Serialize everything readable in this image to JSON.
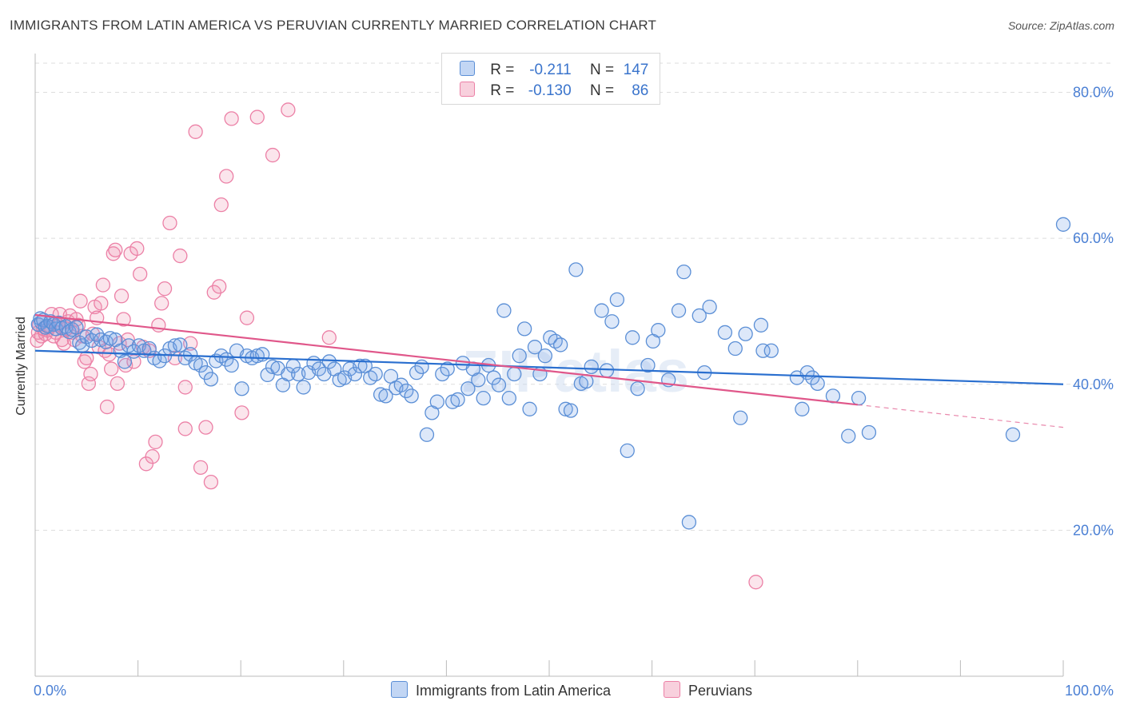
{
  "header": {
    "title": "IMMIGRANTS FROM LATIN AMERICA VS PERUVIAN CURRENTLY MARRIED CORRELATION CHART",
    "source": "Source: ZipAtlas.com"
  },
  "legend_top": {
    "rows": [
      {
        "r_label": "R =",
        "r_value": "-0.211",
        "n_label": "N =",
        "n_value": "147"
      },
      {
        "r_label": "R =",
        "r_value": "-0.130",
        "n_label": "N =",
        "n_value": "86"
      }
    ]
  },
  "legend_bottom": {
    "items": [
      "Immigrants from Latin America",
      "Peruvians"
    ]
  },
  "watermark": "ZIPatlas",
  "colors": {
    "blue": "#5b8fd6",
    "blue_fill": "rgba(120,165,230,0.25)",
    "blue_line": "#2a6fcf",
    "pink": "#ec80a6",
    "pink_fill": "rgba(240,150,180,0.25)",
    "pink_line": "#e0578a",
    "tick_text": "#4a7fd4",
    "grid": "#dddddd"
  },
  "chart_data": {
    "type": "scatter",
    "title": "IMMIGRANTS FROM LATIN AMERICA VS PERUVIAN CURRENTLY MARRIED CORRELATION CHART",
    "xlabel": "",
    "ylabel": "Currently Married",
    "xlim": [
      0,
      100
    ],
    "ylim": [
      0,
      84
    ],
    "x_ticks": [
      "0.0%",
      "100.0%"
    ],
    "y_ticks": [
      {
        "value": 20,
        "label": "20.0%"
      },
      {
        "value": 40,
        "label": "40.0%"
      },
      {
        "value": 60,
        "label": "60.0%"
      },
      {
        "value": 80,
        "label": "80.0%"
      }
    ],
    "grid": true,
    "legend_position": "top-center",
    "series": [
      {
        "name": "Immigrants from Latin America",
        "r": -0.211,
        "n": 147,
        "trend": {
          "x": [
            0,
            100
          ],
          "y": [
            44.6,
            40.0
          ]
        },
        "points": [
          [
            0.3,
            48.2
          ],
          [
            0.5,
            49.0
          ],
          [
            0.6,
            48.5
          ],
          [
            0.8,
            48.8
          ],
          [
            1.0,
            47.8
          ],
          [
            1.2,
            48.0
          ],
          [
            1.5,
            48.6
          ],
          [
            1.8,
            48.2
          ],
          [
            2.0,
            47.6
          ],
          [
            2.3,
            48.4
          ],
          [
            2.6,
            47.7
          ],
          [
            3.0,
            47.9
          ],
          [
            3.3,
            47.2
          ],
          [
            3.6,
            47.5
          ],
          [
            4.0,
            47.8
          ],
          [
            4.3,
            45.7
          ],
          [
            4.6,
            45.3
          ],
          [
            5.0,
            46.5
          ],
          [
            5.5,
            46.0
          ],
          [
            6.0,
            46.8
          ],
          [
            6.4,
            46.1
          ],
          [
            6.9,
            45.8
          ],
          [
            7.3,
            46.3
          ],
          [
            7.8,
            46.1
          ],
          [
            8.3,
            44.6
          ],
          [
            8.7,
            43.1
          ],
          [
            9.1,
            45.3
          ],
          [
            9.6,
            44.5
          ],
          [
            10.1,
            45.3
          ],
          [
            10.6,
            44.6
          ],
          [
            11.1,
            44.9
          ],
          [
            11.6,
            43.6
          ],
          [
            12.1,
            43.2
          ],
          [
            12.6,
            43.9
          ],
          [
            13.1,
            44.9
          ],
          [
            13.6,
            45.3
          ],
          [
            14.1,
            45.4
          ],
          [
            14.6,
            43.6
          ],
          [
            15.1,
            44.1
          ],
          [
            15.6,
            42.9
          ],
          [
            16.1,
            42.6
          ],
          [
            16.6,
            41.6
          ],
          [
            17.1,
            40.7
          ],
          [
            17.6,
            43.2
          ],
          [
            18.1,
            43.9
          ],
          [
            18.6,
            43.4
          ],
          [
            19.1,
            42.6
          ],
          [
            19.6,
            44.6
          ],
          [
            20.1,
            39.4
          ],
          [
            20.6,
            43.9
          ],
          [
            21.1,
            43.6
          ],
          [
            21.6,
            43.9
          ],
          [
            22.1,
            44.1
          ],
          [
            22.6,
            41.3
          ],
          [
            23.1,
            42.4
          ],
          [
            23.6,
            42.2
          ],
          [
            24.1,
            39.9
          ],
          [
            24.6,
            41.4
          ],
          [
            25.1,
            42.5
          ],
          [
            25.6,
            41.4
          ],
          [
            26.1,
            39.6
          ],
          [
            26.6,
            41.6
          ],
          [
            27.1,
            42.9
          ],
          [
            27.6,
            42.1
          ],
          [
            28.1,
            41.4
          ],
          [
            28.6,
            43.1
          ],
          [
            29.1,
            42.1
          ],
          [
            29.6,
            40.6
          ],
          [
            30.1,
            40.9
          ],
          [
            30.6,
            42.1
          ],
          [
            31.1,
            41.4
          ],
          [
            31.6,
            42.5
          ],
          [
            32.1,
            42.5
          ],
          [
            32.6,
            40.9
          ],
          [
            33.1,
            41.4
          ],
          [
            33.6,
            38.6
          ],
          [
            34.1,
            38.4
          ],
          [
            34.6,
            41.1
          ],
          [
            35.1,
            39.5
          ],
          [
            35.6,
            39.9
          ],
          [
            36.1,
            39.1
          ],
          [
            36.6,
            38.4
          ],
          [
            37.1,
            41.6
          ],
          [
            37.6,
            42.4
          ],
          [
            38.1,
            33.1
          ],
          [
            38.6,
            36.1
          ],
          [
            39.1,
            37.6
          ],
          [
            39.6,
            41.4
          ],
          [
            40.1,
            42.1
          ],
          [
            40.6,
            37.6
          ],
          [
            41.1,
            37.9
          ],
          [
            41.6,
            42.9
          ],
          [
            42.1,
            39.4
          ],
          [
            42.6,
            42.1
          ],
          [
            43.1,
            40.6
          ],
          [
            43.6,
            38.1
          ],
          [
            44.1,
            42.6
          ],
          [
            44.6,
            40.9
          ],
          [
            45.1,
            39.9
          ],
          [
            45.6,
            50.1
          ],
          [
            46.1,
            38.1
          ],
          [
            46.6,
            41.4
          ],
          [
            47.1,
            43.9
          ],
          [
            47.6,
            47.6
          ],
          [
            48.1,
            36.6
          ],
          [
            48.6,
            45.1
          ],
          [
            49.1,
            41.4
          ],
          [
            49.6,
            43.9
          ],
          [
            50.1,
            46.4
          ],
          [
            50.6,
            45.9
          ],
          [
            51.1,
            45.4
          ],
          [
            51.6,
            36.6
          ],
          [
            52.1,
            36.4
          ],
          [
            52.6,
            55.7
          ],
          [
            53.1,
            40.1
          ],
          [
            53.6,
            40.4
          ],
          [
            54.1,
            42.4
          ],
          [
            55.1,
            50.1
          ],
          [
            55.6,
            41.9
          ],
          [
            56.1,
            48.6
          ],
          [
            56.6,
            51.6
          ],
          [
            57.6,
            30.9
          ],
          [
            58.1,
            46.4
          ],
          [
            58.6,
            39.4
          ],
          [
            59.6,
            42.6
          ],
          [
            60.1,
            45.9
          ],
          [
            60.6,
            47.4
          ],
          [
            61.6,
            40.6
          ],
          [
            62.6,
            50.1
          ],
          [
            63.1,
            55.4
          ],
          [
            63.6,
            21.1
          ],
          [
            64.6,
            49.4
          ],
          [
            65.1,
            41.6
          ],
          [
            65.6,
            50.6
          ],
          [
            67.1,
            47.1
          ],
          [
            68.1,
            44.9
          ],
          [
            68.6,
            35.4
          ],
          [
            69.1,
            46.9
          ],
          [
            70.6,
            48.1
          ],
          [
            70.8,
            44.6
          ],
          [
            71.6,
            44.6
          ],
          [
            74.1,
            40.9
          ],
          [
            74.6,
            36.6
          ],
          [
            75.1,
            41.6
          ],
          [
            75.6,
            40.9
          ],
          [
            76.1,
            40.1
          ],
          [
            77.6,
            38.4
          ],
          [
            79.1,
            32.9
          ],
          [
            80.1,
            38.1
          ],
          [
            81.1,
            33.4
          ],
          [
            95.1,
            33.1
          ],
          [
            100.0,
            61.9
          ]
        ]
      },
      {
        "name": "Peruvians",
        "r": -0.13,
        "n": 86,
        "trend": {
          "x": [
            0,
            80
          ],
          "y": [
            49.5,
            37.2
          ]
        },
        "trend_dashed": {
          "x": [
            80,
            100
          ],
          "y": [
            37.2,
            34.1
          ]
        },
        "points": [
          [
            0.2,
            46.0
          ],
          [
            0.3,
            47.1
          ],
          [
            0.4,
            48.1
          ],
          [
            0.6,
            46.6
          ],
          [
            0.8,
            47.6
          ],
          [
            1.0,
            46.9
          ],
          [
            1.2,
            47.4
          ],
          [
            1.4,
            47.9
          ],
          [
            1.6,
            49.6
          ],
          [
            1.8,
            46.6
          ],
          [
            2.0,
            47.1
          ],
          [
            2.2,
            48.1
          ],
          [
            2.4,
            49.6
          ],
          [
            2.6,
            46.1
          ],
          [
            2.8,
            45.6
          ],
          [
            3.0,
            47.6
          ],
          [
            3.2,
            48.6
          ],
          [
            3.4,
            49.4
          ],
          [
            3.6,
            47.1
          ],
          [
            3.8,
            46.1
          ],
          [
            4.0,
            48.9
          ],
          [
            4.2,
            48.1
          ],
          [
            4.4,
            51.4
          ],
          [
            4.6,
            46.6
          ],
          [
            4.8,
            43.1
          ],
          [
            5.0,
            43.6
          ],
          [
            5.2,
            40.1
          ],
          [
            5.4,
            41.4
          ],
          [
            5.6,
            46.9
          ],
          [
            5.8,
            50.6
          ],
          [
            6.0,
            49.1
          ],
          [
            6.2,
            45.1
          ],
          [
            6.4,
            51.1
          ],
          [
            6.6,
            53.6
          ],
          [
            6.8,
            44.6
          ],
          [
            7.0,
            36.9
          ],
          [
            7.2,
            44.1
          ],
          [
            7.4,
            42.1
          ],
          [
            7.6,
            57.9
          ],
          [
            7.8,
            58.4
          ],
          [
            8.0,
            40.1
          ],
          [
            8.2,
            45.6
          ],
          [
            8.4,
            52.1
          ],
          [
            8.6,
            48.9
          ],
          [
            8.8,
            42.6
          ],
          [
            9.0,
            46.1
          ],
          [
            9.3,
            57.9
          ],
          [
            9.6,
            43.1
          ],
          [
            9.9,
            58.6
          ],
          [
            10.2,
            55.1
          ],
          [
            10.5,
            45.1
          ],
          [
            10.8,
            29.1
          ],
          [
            11.1,
            44.6
          ],
          [
            11.4,
            30.1
          ],
          [
            11.7,
            32.1
          ],
          [
            12.0,
            48.1
          ],
          [
            12.3,
            51.1
          ],
          [
            12.6,
            53.1
          ],
          [
            13.1,
            62.1
          ],
          [
            13.6,
            43.6
          ],
          [
            14.1,
            57.6
          ],
          [
            14.6,
            33.9
          ],
          [
            14.6,
            39.6
          ],
          [
            15.1,
            45.6
          ],
          [
            15.6,
            74.6
          ],
          [
            16.1,
            28.6
          ],
          [
            16.6,
            34.1
          ],
          [
            17.1,
            26.6
          ],
          [
            17.4,
            52.6
          ],
          [
            17.9,
            53.4
          ],
          [
            18.1,
            64.6
          ],
          [
            18.6,
            68.5
          ],
          [
            19.1,
            76.4
          ],
          [
            20.1,
            36.1
          ],
          [
            20.6,
            49.1
          ],
          [
            21.6,
            76.6
          ],
          [
            23.1,
            71.4
          ],
          [
            24.6,
            77.6
          ],
          [
            28.6,
            46.4
          ],
          [
            70.1,
            12.9
          ]
        ]
      }
    ]
  }
}
